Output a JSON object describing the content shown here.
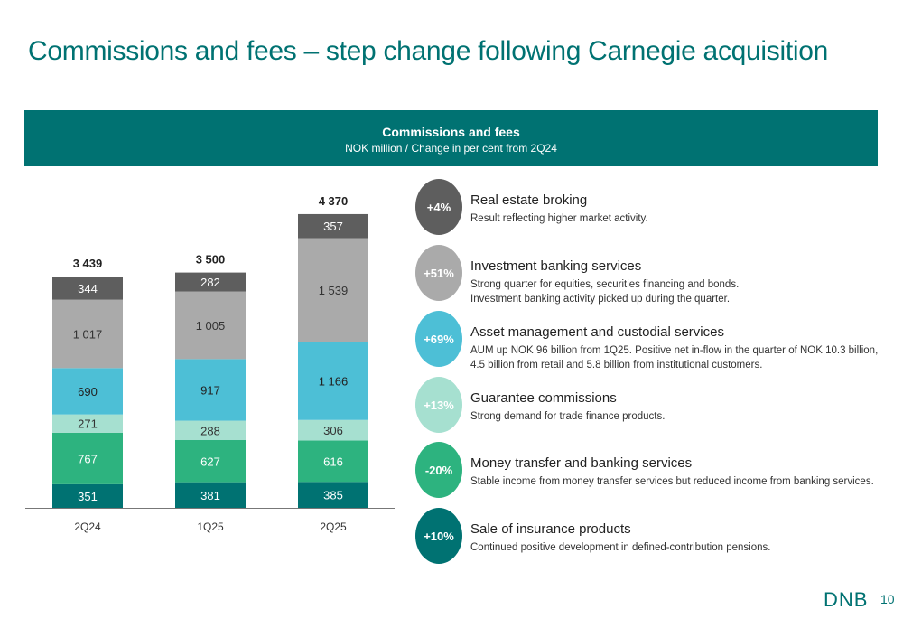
{
  "page": {
    "title": "Commissions and fees – step change following Carnegie acquisition",
    "page_number": "10",
    "logo_text": "DNB"
  },
  "header": {
    "title": "Commissions and fees",
    "subtitle": "NOK million / Change in per cent from 2Q24"
  },
  "chart_data": {
    "type": "bar",
    "stacked": true,
    "categories": [
      "2Q24",
      "1Q25",
      "2Q25"
    ],
    "totals": [
      "3 439",
      "3 500",
      "4 370"
    ],
    "series": [
      {
        "values": [
          351,
          381,
          385
        ],
        "labels": [
          "351",
          "381",
          "385"
        ],
        "color": "#007272",
        "label_color": "#ffffff"
      },
      {
        "values": [
          767,
          627,
          616
        ],
        "labels": [
          "767",
          "627",
          "616"
        ],
        "color": "#2db37f",
        "label_color": "#ffffff"
      },
      {
        "values": [
          271,
          288,
          306
        ],
        "labels": [
          "271",
          "288",
          "306"
        ],
        "color": "#a6e0d0",
        "label_color": "#333333"
      },
      {
        "values": [
          690,
          917,
          1166
        ],
        "labels": [
          "690",
          "917",
          "1 166"
        ],
        "color": "#4dbfd6",
        "label_color": "#222222"
      },
      {
        "values": [
          1017,
          1005,
          1539
        ],
        "labels": [
          "1 017",
          "1 005",
          "1 539"
        ],
        "color": "#aaaaaa",
        "label_color": "#333333"
      },
      {
        "values": [
          344,
          282,
          357
        ],
        "labels": [
          "344",
          "282",
          "357"
        ],
        "color": "#5e5e5e",
        "label_color": "#ffffff"
      }
    ]
  },
  "items": [
    {
      "badge": "+4%",
      "color": "#5e5e5e",
      "title": "Real estate broking",
      "desc": [
        "Result reflecting higher market activity."
      ]
    },
    {
      "badge": "+51%",
      "color": "#aaaaaa",
      "title": "Investment banking services",
      "desc": [
        "Strong quarter for equities, securities financing and bonds.",
        "Investment banking activity picked up during the quarter."
      ]
    },
    {
      "badge": "+69%",
      "color": "#4dbfd6",
      "title": "Asset management and custodial services",
      "desc": [
        "AUM up NOK 96 billion from 1Q25. Positive net in-flow in the quarter of NOK 10.3 billion,",
        "4.5 billion from retail and 5.8 billion from institutional customers."
      ]
    },
    {
      "badge": "+13%",
      "color": "#a6e0d0",
      "title": "Guarantee commissions",
      "desc": [
        "Strong demand for trade finance products."
      ]
    },
    {
      "badge": "-20%",
      "color": "#2db37f",
      "title": "Money transfer and banking services",
      "desc": [
        "Stable income from money transfer services but reduced income from banking services."
      ]
    },
    {
      "badge": "+10%",
      "color": "#007272",
      "title": "Sale of insurance products",
      "desc": [
        "Continued positive development in defined-contribution pensions."
      ]
    }
  ]
}
